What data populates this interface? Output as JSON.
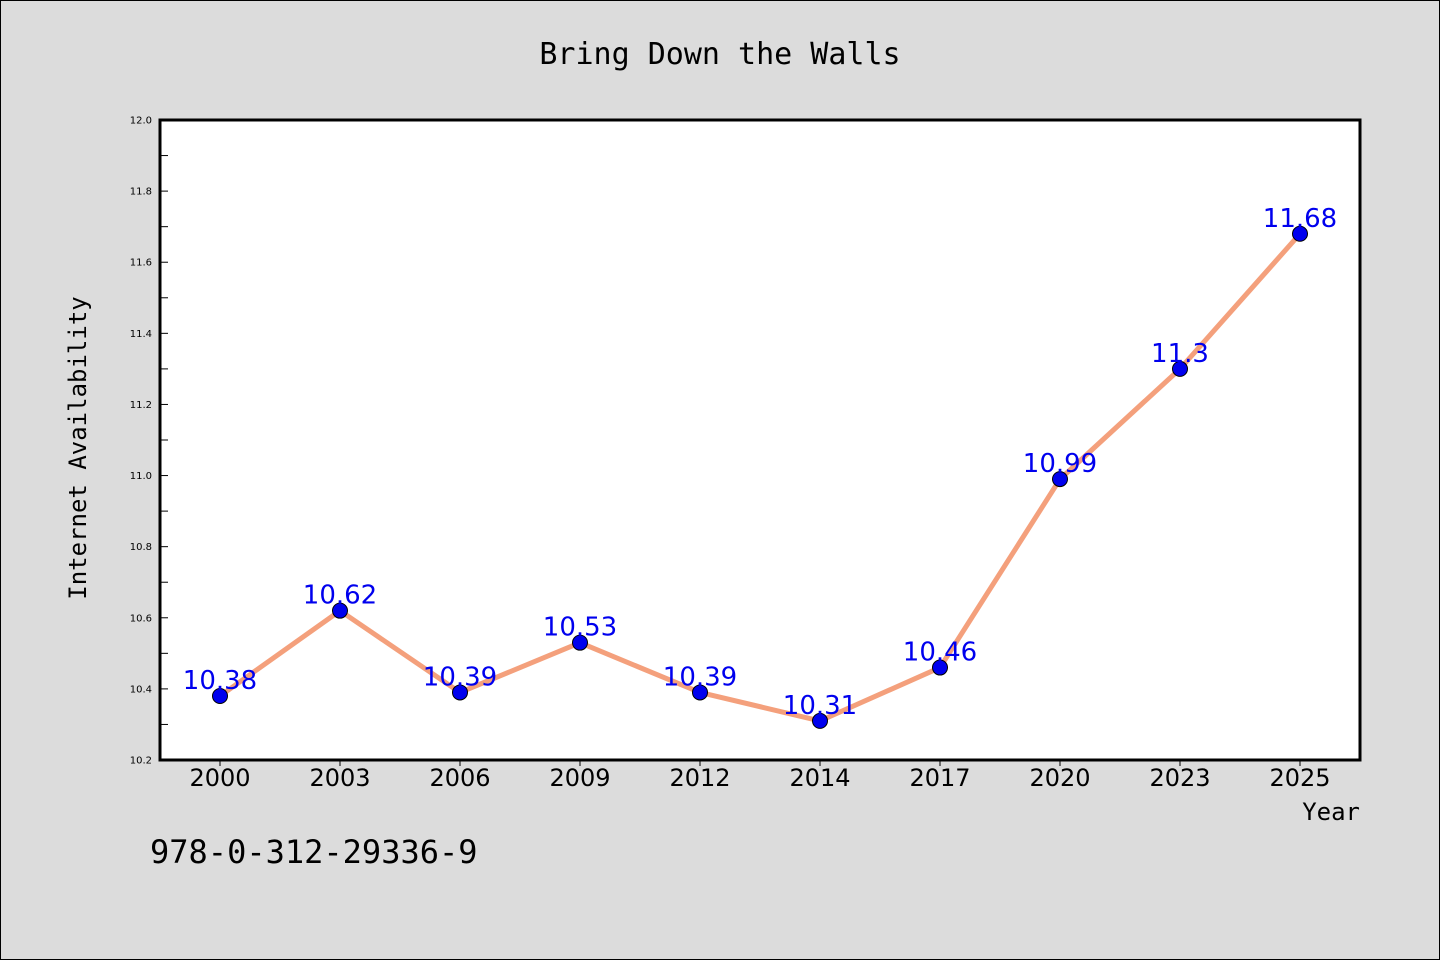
{
  "chart_data": {
    "type": "line",
    "title": "Bring Down the Walls",
    "xlabel": "Year",
    "ylabel": "Internet Availability",
    "categories": [
      "2000",
      "2003",
      "2006",
      "2009",
      "2012",
      "2014",
      "2017",
      "2020",
      "2023",
      "2025"
    ],
    "series": [
      {
        "values": [
          10.38,
          10.62,
          10.39,
          10.53,
          10.39,
          10.31,
          10.46,
          10.99,
          11.3,
          11.68
        ],
        "data_labels": [
          "10.38",
          "10.62",
          "10.39",
          "10.53",
          "10.39",
          "10.31",
          "10.46",
          "10.99",
          "11.3",
          "11.68"
        ],
        "line_color": "#f4a07c",
        "marker_color": "#0000ee",
        "label_color": "#0000ee"
      }
    ],
    "ylim": [
      10.2,
      12.0
    ],
    "yticks": [
      "10.2",
      "10.4",
      "10.6",
      "10.8",
      "11.0",
      "11.2",
      "11.4",
      "11.6",
      "11.8",
      "12.0"
    ],
    "grid": false,
    "legend": "none"
  },
  "footer": {
    "isbn": "978-0-312-29336-9"
  },
  "colors": {
    "background": "#dcdcdc",
    "plot_background": "#ffffff",
    "axis": "#000000"
  }
}
